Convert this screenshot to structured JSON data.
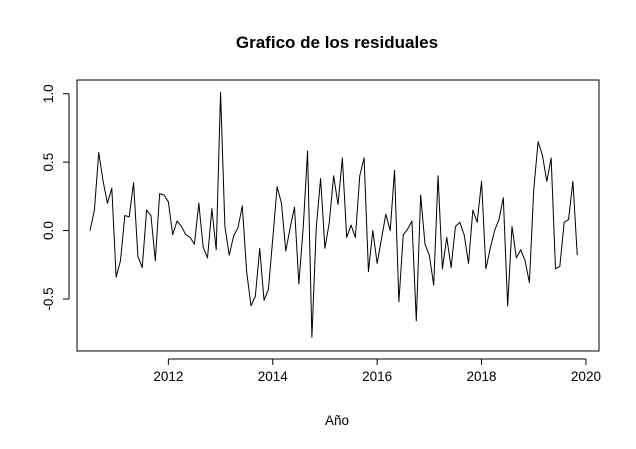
{
  "chart_data": {
    "type": "line",
    "title": "Grafico de los residuales",
    "xlabel": "Año",
    "ylabel": "",
    "xlim": [
      2010.25,
      2020.25
    ],
    "ylim": [
      -0.88,
      1.1
    ],
    "x_ticks": [
      {
        "value": 2012,
        "label": "2012"
      },
      {
        "value": 2014,
        "label": "2014"
      },
      {
        "value": 2016,
        "label": "2016"
      },
      {
        "value": 2018,
        "label": "2018"
      },
      {
        "value": 2020,
        "label": "2020"
      }
    ],
    "y_ticks": [
      {
        "value": -0.5,
        "label": "-0.5"
      },
      {
        "value": 0.0,
        "label": "0.0"
      },
      {
        "value": 0.5,
        "label": "0.5"
      },
      {
        "value": 1.0,
        "label": "1.0"
      }
    ],
    "grid": false,
    "legend": "none",
    "series": [
      {
        "x_start": 2010.5,
        "x_step": 0.0833333,
        "color": "#000000",
        "values": [
          0.0,
          0.15,
          0.57,
          0.36,
          0.2,
          0.31,
          -0.34,
          -0.22,
          0.11,
          0.1,
          0.35,
          -0.19,
          -0.27,
          0.15,
          0.11,
          -0.22,
          0.27,
          0.26,
          0.21,
          -0.03,
          0.07,
          0.03,
          -0.03,
          -0.05,
          -0.1,
          0.2,
          -0.12,
          -0.2,
          0.16,
          -0.14,
          1.01,
          0.03,
          -0.18,
          -0.04,
          0.02,
          0.18,
          -0.3,
          -0.55,
          -0.48,
          -0.13,
          -0.51,
          -0.43,
          -0.06,
          0.32,
          0.2,
          -0.15,
          0.02,
          0.17,
          -0.39,
          0.02,
          0.58,
          -0.78,
          0.02,
          0.38,
          -0.13,
          0.06,
          0.4,
          0.19,
          0.53,
          -0.05,
          0.04,
          -0.05,
          0.4,
          0.53,
          -0.3,
          0.0,
          -0.24,
          -0.06,
          0.12,
          0.0,
          0.44,
          -0.52,
          -0.03,
          0.01,
          0.07,
          -0.66,
          0.26,
          -0.1,
          -0.18,
          -0.4,
          0.4,
          -0.28,
          -0.05,
          -0.27,
          0.03,
          0.06,
          -0.03,
          -0.24,
          0.15,
          0.06,
          0.36,
          -0.28,
          -0.13,
          0.0,
          0.08,
          0.24,
          -0.55,
          0.03,
          -0.2,
          -0.14,
          -0.22,
          -0.38,
          0.3,
          0.65,
          0.55,
          0.36,
          0.53,
          -0.28,
          -0.26,
          0.06,
          0.08,
          0.36,
          -0.18
        ]
      }
    ]
  }
}
